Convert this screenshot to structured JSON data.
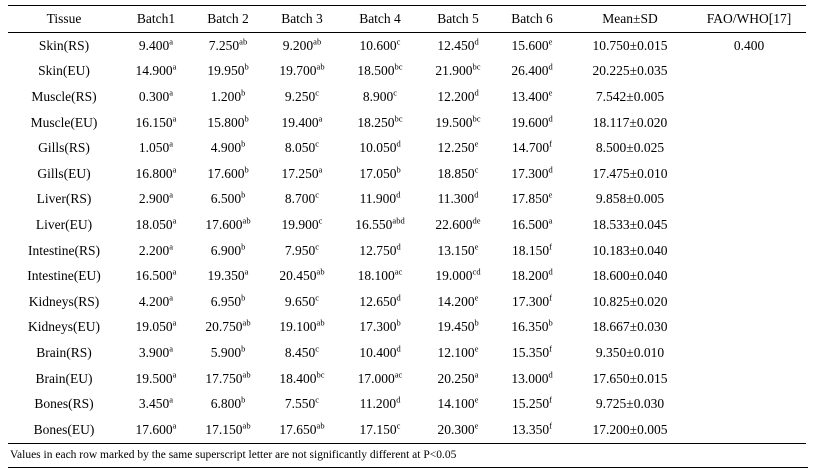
{
  "table": {
    "headers": [
      "Tissue",
      "Batch1",
      "Batch 2",
      "Batch 3",
      "Batch 4",
      "Batch 5",
      "Batch 6",
      "Mean±SD",
      "FAO/WHO[17]"
    ],
    "rows": [
      {
        "tissue": "Skin(RS)",
        "cells": [
          {
            "v": "9.400",
            "s": "a"
          },
          {
            "v": "7.250",
            "s": "ab"
          },
          {
            "v": "9.200",
            "s": "ab"
          },
          {
            "v": "10.600",
            "s": "c"
          },
          {
            "v": "12.450",
            "s": "d"
          },
          {
            "v": "15.600",
            "s": "e"
          }
        ],
        "mean_sd": "10.750±0.015",
        "fao_who": "0.400"
      },
      {
        "tissue": "Skin(EU)",
        "cells": [
          {
            "v": "14.900",
            "s": "a"
          },
          {
            "v": "19.950",
            "s": "b"
          },
          {
            "v": "19.700",
            "s": "ab"
          },
          {
            "v": "18.500",
            "s": "bc"
          },
          {
            "v": "21.900",
            "s": "bc"
          },
          {
            "v": "26.400",
            "s": "d"
          }
        ],
        "mean_sd": "20.225±0.035",
        "fao_who": ""
      },
      {
        "tissue": "Muscle(RS)",
        "cells": [
          {
            "v": "0.300",
            "s": "a"
          },
          {
            "v": "1.200",
            "s": "b"
          },
          {
            "v": "9.250",
            "s": "c"
          },
          {
            "v": "8.900",
            "s": "c"
          },
          {
            "v": "12.200",
            "s": "d"
          },
          {
            "v": "13.400",
            "s": "e"
          }
        ],
        "mean_sd": "7.542±0.005",
        "fao_who": ""
      },
      {
        "tissue": "Muscle(EU)",
        "cells": [
          {
            "v": "16.150",
            "s": "a"
          },
          {
            "v": "15.800",
            "s": "b"
          },
          {
            "v": "19.400",
            "s": "a"
          },
          {
            "v": "18.250",
            "s": "bc"
          },
          {
            "v": "19.500",
            "s": "bc"
          },
          {
            "v": "19.600",
            "s": "d"
          }
        ],
        "mean_sd": "18.117±0.020",
        "fao_who": ""
      },
      {
        "tissue": "Gills(RS)",
        "cells": [
          {
            "v": "1.050",
            "s": "a"
          },
          {
            "v": "4.900",
            "s": "b"
          },
          {
            "v": "8.050",
            "s": "c"
          },
          {
            "v": "10.050",
            "s": "d"
          },
          {
            "v": "12.250",
            "s": "e"
          },
          {
            "v": "14.700",
            "s": "f"
          }
        ],
        "mean_sd": "8.500±0.025",
        "fao_who": ""
      },
      {
        "tissue": "Gills(EU)",
        "cells": [
          {
            "v": "16.800",
            "s": "a"
          },
          {
            "v": "17.600",
            "s": "b"
          },
          {
            "v": "17.250",
            "s": "a"
          },
          {
            "v": "17.050",
            "s": "b"
          },
          {
            "v": "18.850",
            "s": "c"
          },
          {
            "v": "17.300",
            "s": "d"
          }
        ],
        "mean_sd": "17.475±0.010",
        "fao_who": ""
      },
      {
        "tissue": "Liver(RS)",
        "cells": [
          {
            "v": "2.900",
            "s": "a"
          },
          {
            "v": "6.500",
            "s": "b"
          },
          {
            "v": "8.700",
            "s": "c"
          },
          {
            "v": "11.900",
            "s": "d"
          },
          {
            "v": "11.300",
            "s": "d"
          },
          {
            "v": "17.850",
            "s": "e"
          }
        ],
        "mean_sd": "9.858±0.005",
        "fao_who": ""
      },
      {
        "tissue": "Liver(EU)",
        "cells": [
          {
            "v": "18.050",
            "s": "a"
          },
          {
            "v": "17.600",
            "s": "ab"
          },
          {
            "v": "19.900",
            "s": "c"
          },
          {
            "v": "16.550",
            "s": "abd"
          },
          {
            "v": "22.600",
            "s": "de"
          },
          {
            "v": "16.500",
            "s": "a"
          }
        ],
        "mean_sd": "18.533±0.045",
        "fao_who": ""
      },
      {
        "tissue": "Intestine(RS)",
        "cells": [
          {
            "v": "2.200",
            "s": "a"
          },
          {
            "v": "6.900",
            "s": "b"
          },
          {
            "v": "7.950",
            "s": "c"
          },
          {
            "v": "12.750",
            "s": "d"
          },
          {
            "v": "13.150",
            "s": "e"
          },
          {
            "v": "18.150",
            "s": "f"
          }
        ],
        "mean_sd": "10.183±0.040",
        "fao_who": ""
      },
      {
        "tissue": "Intestine(EU)",
        "cells": [
          {
            "v": "16.500",
            "s": "a"
          },
          {
            "v": "19.350",
            "s": "a"
          },
          {
            "v": "20.450",
            "s": "ab"
          },
          {
            "v": "18.100",
            "s": "ac"
          },
          {
            "v": "19.000",
            "s": "cd"
          },
          {
            "v": "18.200",
            "s": "d"
          }
        ],
        "mean_sd": "18.600±0.040",
        "fao_who": ""
      },
      {
        "tissue": "Kidneys(RS)",
        "cells": [
          {
            "v": "4.200",
            "s": "a"
          },
          {
            "v": "6.950",
            "s": "b"
          },
          {
            "v": "9.650",
            "s": "c"
          },
          {
            "v": "12.650",
            "s": "d"
          },
          {
            "v": "14.200",
            "s": "e"
          },
          {
            "v": "17.300",
            "s": "f"
          }
        ],
        "mean_sd": "10.825±0.020",
        "fao_who": ""
      },
      {
        "tissue": "Kidneys(EU)",
        "cells": [
          {
            "v": "19.050",
            "s": "a"
          },
          {
            "v": "20.750",
            "s": "ab"
          },
          {
            "v": "19.100",
            "s": "ab"
          },
          {
            "v": "17.300",
            "s": "b"
          },
          {
            "v": "19.450",
            "s": "b"
          },
          {
            "v": "16.350",
            "s": "b"
          }
        ],
        "mean_sd": "18.667±0.030",
        "fao_who": ""
      },
      {
        "tissue": "Brain(RS)",
        "cells": [
          {
            "v": "3.900",
            "s": "a"
          },
          {
            "v": "5.900",
            "s": "b"
          },
          {
            "v": "8.450",
            "s": "c"
          },
          {
            "v": "10.400",
            "s": "d"
          },
          {
            "v": "12.100",
            "s": "e"
          },
          {
            "v": "15.350",
            "s": "f"
          }
        ],
        "mean_sd": "9.350±0.010",
        "fao_who": ""
      },
      {
        "tissue": "Brain(EU)",
        "cells": [
          {
            "v": "19.500",
            "s": "a"
          },
          {
            "v": "17.750",
            "s": "ab"
          },
          {
            "v": "18.400",
            "s": "bc"
          },
          {
            "v": "17.000",
            "s": "ac"
          },
          {
            "v": "20.250",
            "s": "a"
          },
          {
            "v": "13.000",
            "s": "d"
          }
        ],
        "mean_sd": "17.650±0.015",
        "fao_who": ""
      },
      {
        "tissue": "Bones(RS)",
        "cells": [
          {
            "v": "3.450",
            "s": "a"
          },
          {
            "v": "6.800",
            "s": "b"
          },
          {
            "v": "7.550",
            "s": "c"
          },
          {
            "v": "11.200",
            "s": "d"
          },
          {
            "v": "14.100",
            "s": "e"
          },
          {
            "v": "15.250",
            "s": "f"
          }
        ],
        "mean_sd": "9.725±0.030",
        "fao_who": ""
      },
      {
        "tissue": "Bones(EU)",
        "cells": [
          {
            "v": "17.600",
            "s": "a"
          },
          {
            "v": "17.150",
            "s": "ab"
          },
          {
            "v": "17.650",
            "s": "ab"
          },
          {
            "v": "17.150",
            "s": "c"
          },
          {
            "v": "20.300",
            "s": "e"
          },
          {
            "v": "13.350",
            "s": "f"
          }
        ],
        "mean_sd": "17.200±0.005",
        "fao_who": ""
      }
    ],
    "footnote": "Values in each row marked by the same superscript letter are not significantly different at P<0.05"
  }
}
